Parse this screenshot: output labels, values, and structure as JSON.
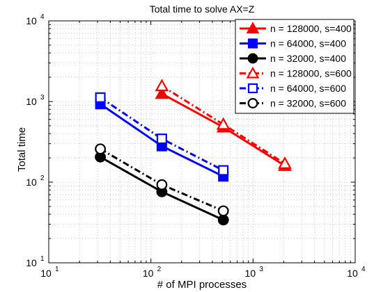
{
  "chart_data": {
    "type": "line",
    "title": "Total time to solve AX=Z",
    "xlabel": "# of MPI processes",
    "ylabel": "Total time",
    "xscale": "log",
    "yscale": "log",
    "xlim": [
      10,
      10000
    ],
    "ylim": [
      10,
      10000
    ],
    "grid": true,
    "legend_position": "top-right",
    "x_tick_labels": [
      {
        "base": "10",
        "exp": "1",
        "value": 10
      },
      {
        "base": "10",
        "exp": "2",
        "value": 100
      },
      {
        "base": "10",
        "exp": "3",
        "value": 1000
      },
      {
        "base": "10",
        "exp": "4",
        "value": 10000
      }
    ],
    "y_tick_labels": [
      {
        "base": "10",
        "exp": "1",
        "value": 10
      },
      {
        "base": "10",
        "exp": "2",
        "value": 100
      },
      {
        "base": "10",
        "exp": "3",
        "value": 1000
      },
      {
        "base": "10",
        "exp": "4",
        "value": 10000
      }
    ],
    "series": [
      {
        "name": "n = 128000, s=400",
        "color": "#ff0000",
        "line": "solid",
        "marker": "triangle",
        "filled": true,
        "x": [
          128,
          512,
          2048
        ],
        "y": [
          1250,
          480,
          160
        ]
      },
      {
        "name": "n = 64000, s=400",
        "color": "#0000ff",
        "line": "solid",
        "marker": "square",
        "filled": true,
        "x": [
          32,
          128,
          512
        ],
        "y": [
          930,
          280,
          118
        ]
      },
      {
        "name": "n = 32000, s=400",
        "color": "#000000",
        "line": "solid",
        "marker": "circle",
        "filled": true,
        "x": [
          32,
          128,
          512
        ],
        "y": [
          205,
          76,
          34
        ]
      },
      {
        "name": "n = 128000, s=600",
        "color": "#ff0000",
        "line": "dashdot",
        "marker": "triangle",
        "filled": false,
        "x": [
          128,
          512,
          2048
        ],
        "y": [
          1560,
          520,
          170
        ]
      },
      {
        "name": "n = 64000, s=600",
        "color": "#0000ff",
        "line": "dashdot",
        "marker": "square",
        "filled": false,
        "x": [
          32,
          128,
          512
        ],
        "y": [
          1120,
          345,
          140
        ]
      },
      {
        "name": "n = 32000, s=600",
        "color": "#000000",
        "line": "dashdot",
        "marker": "circle",
        "filled": false,
        "x": [
          32,
          128,
          512
        ],
        "y": [
          258,
          93,
          44
        ]
      }
    ]
  }
}
